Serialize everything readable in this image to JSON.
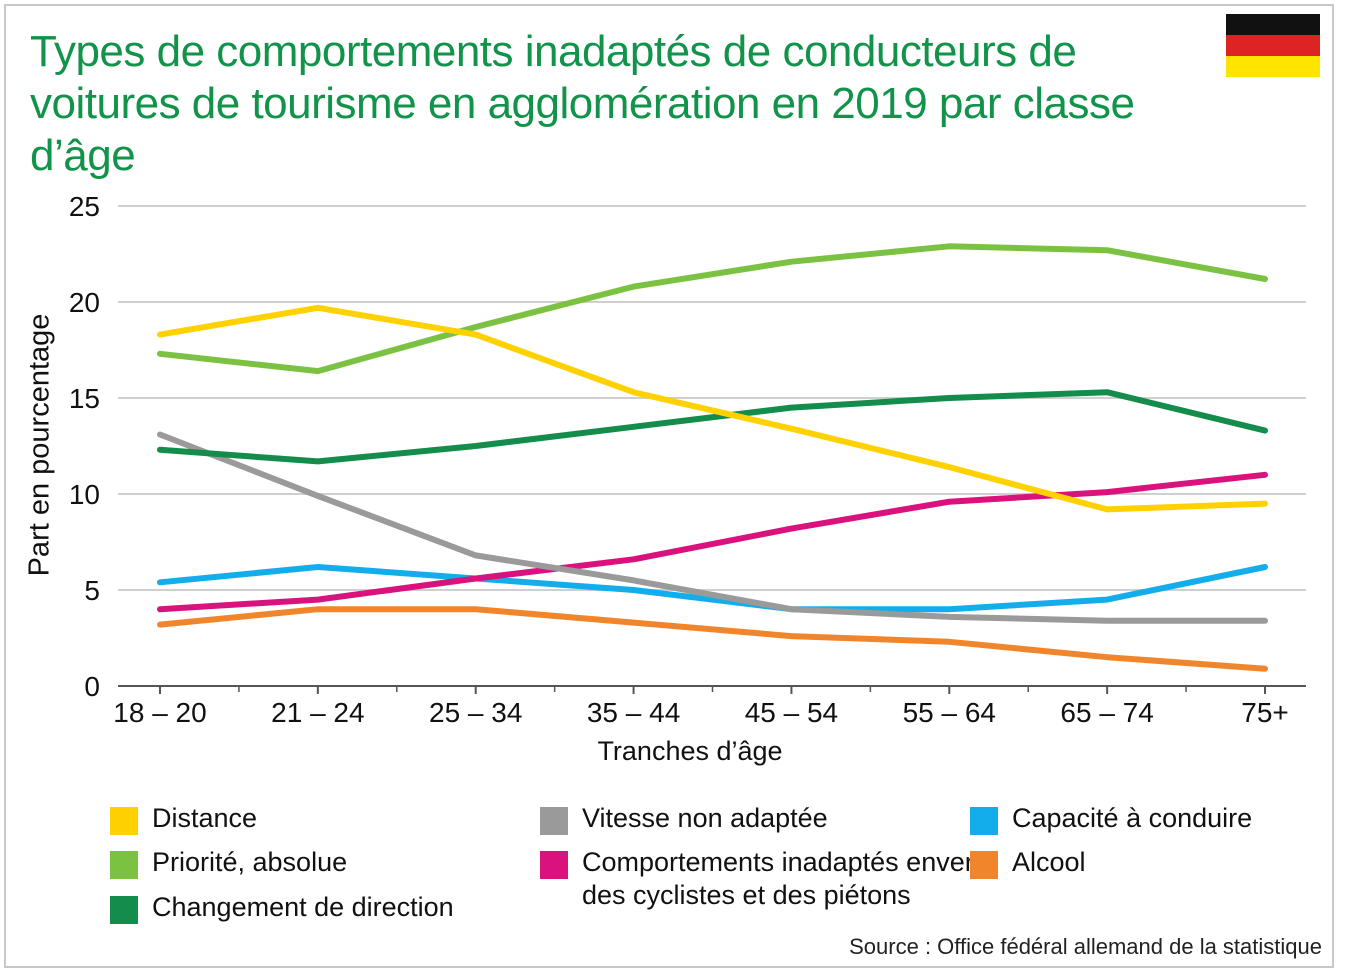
{
  "title": "Types de comportements inadaptés de conducteurs de voitures de tourisme en agglomération en 2019 par classe d’âge",
  "colors": {
    "title": "#11934a",
    "grid": "#cfcfcf",
    "axis": "#555555",
    "flag_black": "#111111",
    "flag_red": "#dd2323",
    "flag_gold": "#ffe400"
  },
  "source": "Source : Office fédéral allemand de la statistique",
  "chart_data": {
    "type": "line",
    "title": "Types de comportements inadaptés de conducteurs de voitures de tourisme en agglomération en 2019 par classe d’âge",
    "xlabel": "Tranches d’âge",
    "ylabel": "Part en pourcentage",
    "ylim": [
      0,
      25
    ],
    "yticks": [
      "0",
      "5",
      "10",
      "15",
      "20",
      "25"
    ],
    "grid": true,
    "categories": [
      "18 – 20",
      "21 – 24",
      "25 – 34",
      "35 – 44",
      "45 – 54",
      "55 – 64",
      "65 – 74",
      "75+"
    ],
    "series": [
      {
        "name": "Distance",
        "color": "#ffd100",
        "values": [
          18.3,
          19.7,
          18.3,
          15.3,
          13.4,
          11.4,
          9.2,
          9.5
        ]
      },
      {
        "name": "Priorité, absolue",
        "color": "#7cc242",
        "values": [
          17.3,
          16.4,
          18.7,
          20.8,
          22.1,
          22.9,
          22.7,
          21.2
        ]
      },
      {
        "name": "Changement de direction",
        "color": "#138c4c",
        "values": [
          12.3,
          11.7,
          12.5,
          13.5,
          14.5,
          15.0,
          15.3,
          13.3
        ]
      },
      {
        "name": "Vitesse non adaptée",
        "color": "#9a9a9a",
        "values": [
          13.1,
          9.9,
          6.8,
          5.5,
          4.0,
          3.6,
          3.4,
          3.4
        ]
      },
      {
        "name": "Comportements inadaptés envers\ndes cyclistes et des piétons",
        "color": "#d9127e",
        "values": [
          4.0,
          4.5,
          5.6,
          6.6,
          8.2,
          9.6,
          10.1,
          11.0
        ]
      },
      {
        "name": "Capacité à conduire",
        "color": "#14adec",
        "values": [
          5.4,
          6.2,
          5.6,
          5.0,
          4.0,
          4.0,
          4.5,
          6.2
        ]
      },
      {
        "name": "Alcool",
        "color": "#f1852c",
        "values": [
          3.2,
          4.0,
          4.0,
          3.3,
          2.6,
          2.3,
          1.5,
          0.9
        ]
      }
    ]
  }
}
